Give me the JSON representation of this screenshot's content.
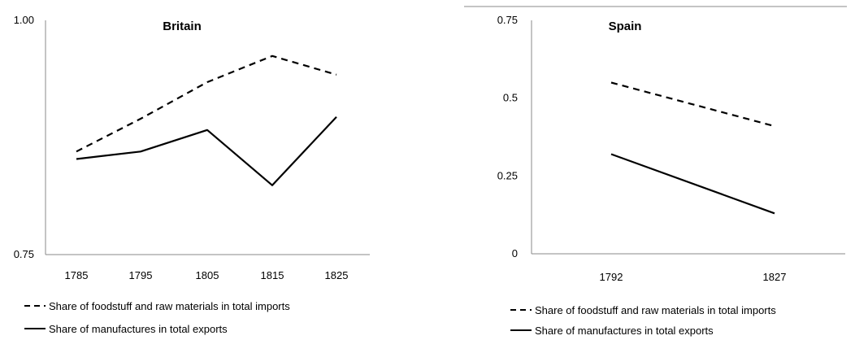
{
  "chart_data": [
    {
      "type": "line",
      "title": "Britain",
      "categories": [
        "1785",
        "1795",
        "1805",
        "1815",
        "1825"
      ],
      "ylim": [
        0.75,
        1.0
      ],
      "yticks": [
        "0.75",
        "1.00"
      ],
      "series": [
        {
          "name": "Share of foodstuff and raw materials in total imports",
          "style": "dashed",
          "values": [
            0.86,
            0.895,
            0.934,
            0.962,
            0.942
          ]
        },
        {
          "name": "Share of manufactures in total exports",
          "style": "solid",
          "values": [
            0.852,
            0.86,
            0.883,
            0.824,
            0.897
          ]
        }
      ],
      "legend_position": "bottom-left",
      "grid": false
    },
    {
      "type": "line",
      "title": "Spain",
      "categories": [
        "1792",
        "1827"
      ],
      "ylim": [
        0,
        0.75
      ],
      "yticks": [
        "0",
        "0.25",
        "0.5",
        "0.75"
      ],
      "series": [
        {
          "name": "Share of foodstuff and raw materials in total imports",
          "style": "dashed",
          "values": [
            0.55,
            0.41
          ]
        },
        {
          "name": "Share of manufactures in total exports",
          "style": "solid",
          "values": [
            0.32,
            0.13
          ]
        }
      ],
      "legend_position": "bottom-left",
      "grid": false
    }
  ]
}
